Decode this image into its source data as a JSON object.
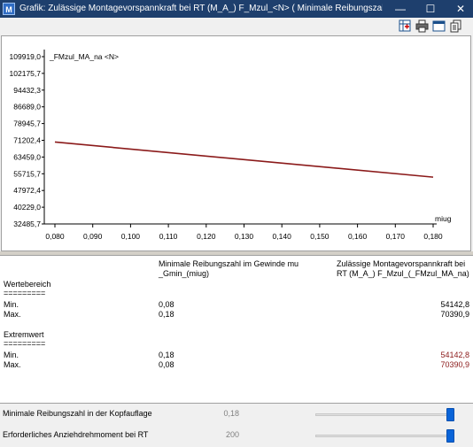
{
  "window": {
    "title": "Grafik: Zulässige Montagevorspannkraft bei RT (M_A_) F_Mzul_<N> ( Minimale Reibungszahl im Gewinde mu_Gmin_(miug) )",
    "app_icon": "M",
    "minimize": "—",
    "maximize": "☐",
    "close": "✕"
  },
  "toolbar": {
    "icons": [
      "chart-data-icon",
      "print-icon",
      "window-icon",
      "copy-icon"
    ]
  },
  "chart_data": {
    "type": "line",
    "title": "",
    "ylabel": "_FMzul_MA_na <N>",
    "xlabel": "miug",
    "x_ticks": [
      "0,080",
      "0,090",
      "0,100",
      "0,110",
      "0,120",
      "0,130",
      "0,140",
      "0,150",
      "0,160",
      "0,170",
      "0,180"
    ],
    "y_ticks": [
      "109919,0",
      "102175,7",
      "94432,3",
      "86689,0",
      "78945,7",
      "71202,4",
      "63459,0",
      "55715,7",
      "47972,4",
      "40229,0",
      "32485,7"
    ],
    "xlim": [
      0.08,
      0.18
    ],
    "ylim": [
      32485.7,
      109919.0
    ],
    "series": [
      {
        "color": "#8b1a1a",
        "x": [
          0.08,
          0.18
        ],
        "y": [
          70390.9,
          54142.8
        ]
      }
    ],
    "grid": false
  },
  "table": {
    "header_col1_line1": "Minimale Reibungszahl im Gewinde mu",
    "header_col1_line2": "_Gmin_(miug)",
    "header_col2_line1": "Zulässige Montagevorspannkraft bei",
    "header_col2_line2": "RT (M_A_) F_Mzul_(_FMzul_MA_na)",
    "sections": [
      {
        "title": "Wertebereich",
        "underline": "=========",
        "rows": [
          {
            "label": "Min.",
            "v1": "0,08",
            "v2": "54142,8",
            "red": false
          },
          {
            "label": "Max.",
            "v1": "0,18",
            "v2": "70390,9",
            "red": false
          }
        ]
      },
      {
        "title": "Extremwert",
        "underline": "=========",
        "rows": [
          {
            "label": "Min.",
            "v1": "0,18",
            "v2": "54142,8",
            "red": true
          },
          {
            "label": "Max.",
            "v1": "0,08",
            "v2": "70390,9",
            "red": true
          }
        ]
      }
    ]
  },
  "controls": [
    {
      "label": "Minimale Reibungszahl in der Kopfauflage",
      "value": "0,18",
      "slider_fraction": 1.0
    },
    {
      "label": "Erforderliches Anziehdrehmoment bei RT",
      "value": "200",
      "slider_fraction": 1.0
    }
  ]
}
